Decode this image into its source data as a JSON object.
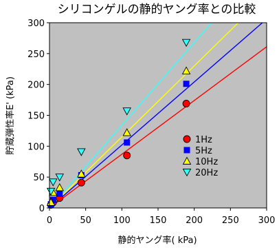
{
  "chart_data": {
    "type": "scatter",
    "title": "シリコンゲルの静的ヤング率との比較",
    "xlabel": "静的ヤング率( kPa)",
    "ylabel": "貯蔵弾性率E' (kPa)",
    "xlim": [
      0,
      300
    ],
    "ylim": [
      0,
      300
    ],
    "x_ticks": [
      "0",
      "50",
      "100",
      "150",
      "200",
      "250",
      "300"
    ],
    "y_ticks": [
      "0",
      "50",
      "100",
      "150",
      "200",
      "250",
      "300"
    ],
    "grid": false,
    "legend_position": "inside-right",
    "plot_background": "#c0c0c0",
    "series": [
      {
        "name": "1Hz",
        "marker": "circle",
        "color": "#ff0000",
        "line_color": "#ff0000",
        "fit": {
          "slope": 0.87,
          "intercept": 0
        },
        "points": [
          [
            2,
            5
          ],
          [
            5,
            9
          ],
          [
            14,
            16
          ],
          [
            44,
            41
          ],
          [
            107,
            85
          ],
          [
            189,
            169
          ]
        ]
      },
      {
        "name": "5Hz",
        "marker": "square",
        "color": "#0000ff",
        "line_color": "#0000ff",
        "fit": {
          "slope": 1.02,
          "intercept": 0
        },
        "points": [
          [
            2,
            6
          ],
          [
            5,
            13
          ],
          [
            14,
            23
          ],
          [
            44,
            53
          ],
          [
            107,
            106
          ],
          [
            189,
            201
          ]
        ]
      },
      {
        "name": "10Hz",
        "marker": "triangle-up",
        "color": "#ffff00",
        "line_color": "#ffff00",
        "fit": {
          "slope": 1.15,
          "intercept": 0
        },
        "points": [
          [
            2,
            9
          ],
          [
            5,
            25
          ],
          [
            14,
            33
          ],
          [
            44,
            55
          ],
          [
            107,
            122
          ],
          [
            189,
            222
          ]
        ]
      },
      {
        "name": "20Hz",
        "marker": "triangle-down",
        "color": "#33ffff",
        "line_color": "#33ffff",
        "fit": {
          "slope": 1.34,
          "intercept": 0
        },
        "points": [
          [
            2,
            27
          ],
          [
            5,
            42
          ],
          [
            14,
            50
          ],
          [
            44,
            91
          ],
          [
            107,
            157
          ],
          [
            189,
            268
          ]
        ]
      }
    ]
  }
}
